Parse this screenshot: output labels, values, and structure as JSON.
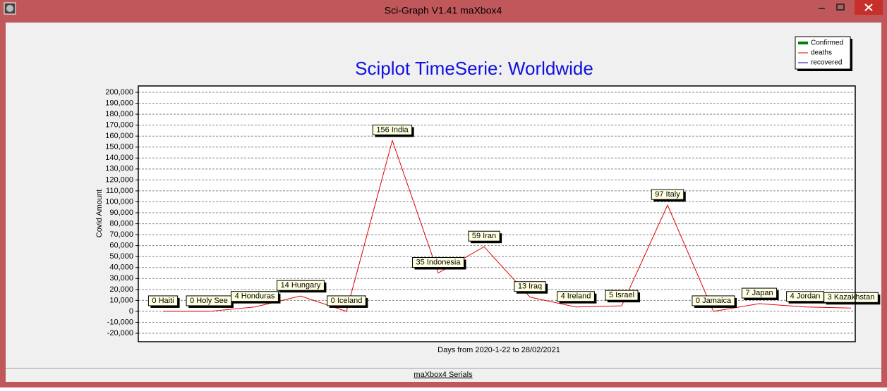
{
  "window": {
    "title": "Sci-Graph V1.41 maXbox4",
    "status": "maXbox4 Serials"
  },
  "chart_data": {
    "type": "line",
    "title": "Sciplot TimeSerie: Worldwide",
    "ylabel": "Covid Amount",
    "xlabel": "Days from 2020-1-22 to 28/02/2021",
    "ylim": [
      -27700,
      205800
    ],
    "yticks": [
      {
        "value": -20000,
        "label": "-20,000"
      },
      {
        "value": -10000,
        "label": "-10,000"
      },
      0,
      {
        "value": 10000,
        "label": "10,000"
      },
      {
        "value": 20000,
        "label": "20,000"
      },
      {
        "value": 30000,
        "label": "30,000"
      },
      {
        "value": 40000,
        "label": "40,000"
      },
      {
        "value": 50000,
        "label": "50,000"
      },
      {
        "value": 60000,
        "label": "60,000"
      },
      {
        "value": 70000,
        "label": "70,000"
      },
      {
        "value": 80000,
        "label": "80,000"
      },
      {
        "value": 90000,
        "label": "90,000"
      },
      {
        "value": 100000,
        "label": "100,000"
      },
      {
        "value": 110000,
        "label": "110,000"
      },
      {
        "value": 120000,
        "label": "120,000"
      },
      {
        "value": 130000,
        "label": "130,000"
      },
      {
        "value": 140000,
        "label": "140,000"
      },
      {
        "value": 150000,
        "label": "150,000"
      },
      {
        "value": 160000,
        "label": "160,000"
      },
      {
        "value": 170000,
        "label": "170,000"
      },
      {
        "value": 180000,
        "label": "180,000"
      },
      {
        "value": 190000,
        "label": "190,000"
      },
      {
        "value": 200000,
        "label": "200,000"
      }
    ],
    "grid": true,
    "legend_position": "top-right",
    "series": [
      {
        "name": "Confirmed",
        "color": "#008000",
        "values": [
          null,
          null,
          null,
          null,
          null,
          null,
          null,
          null,
          null,
          null,
          null,
          null,
          null,
          null,
          null,
          null
        ]
      },
      {
        "name": "deaths",
        "color": "#e00000",
        "values": [
          0,
          0,
          4000,
          14000,
          0,
          156000,
          35000,
          59000,
          13000,
          4000,
          5000,
          97000,
          0,
          7000,
          4000,
          3000
        ],
        "value_labels": [
          "0 Haiti",
          "0 Holy See",
          "4 Honduras",
          "14 Hungary",
          "0 Iceland",
          "156 India",
          "35 Indonesia",
          "59 Iran",
          "13 Iraq",
          "4 Ireland",
          "5 Israel",
          "97 Italy",
          "0 Jamaica",
          "7 Japan",
          "4 Jordan",
          "3 Kazakhstan"
        ]
      },
      {
        "name": "recovered",
        "color": "#0000c0",
        "values": [
          null,
          null,
          null,
          null,
          null,
          null,
          null,
          null,
          null,
          null,
          null,
          null,
          null,
          null,
          null,
          null
        ]
      }
    ]
  }
}
